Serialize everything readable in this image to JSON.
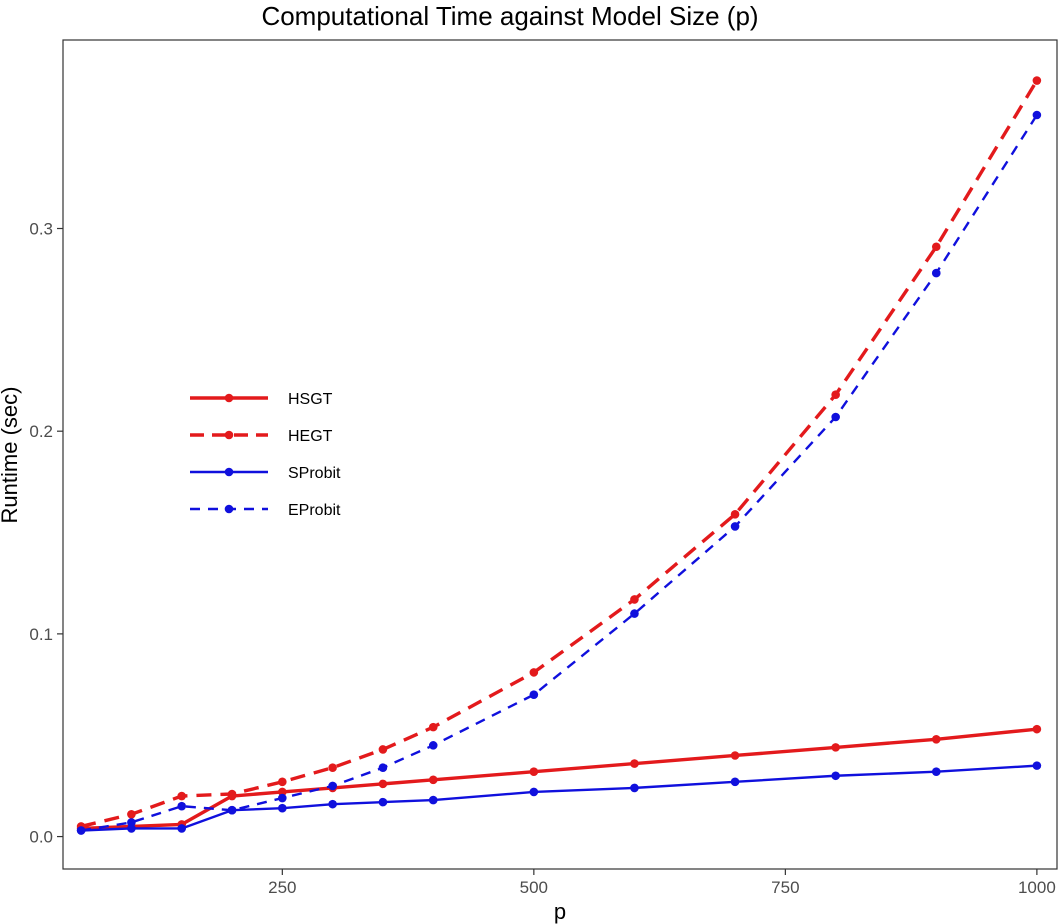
{
  "chart_data": {
    "type": "line",
    "title": "Computational Time against Model Size (p)",
    "xlabel": "p",
    "ylabel": "Runtime (sec)",
    "xlim": [
      32,
      1020
    ],
    "ylim": [
      -0.016,
      0.393
    ],
    "xticks": [
      250,
      500,
      750,
      1000
    ],
    "xtick_labels": [
      "250",
      "500",
      "750",
      "1000"
    ],
    "yticks": [
      0.0,
      0.1,
      0.2,
      0.3
    ],
    "ytick_labels": [
      "0.0",
      "0.1",
      "0.2",
      "0.3"
    ],
    "grid": false,
    "legend_position": "left-middle",
    "x": [
      50,
      100,
      150,
      200,
      250,
      300,
      350,
      400,
      500,
      600,
      700,
      800,
      900,
      1000
    ],
    "series": [
      {
        "name": "HSGT",
        "color": "#e31a1c",
        "dash": "solid",
        "width": "thick",
        "values": [
          0.004,
          0.005,
          0.006,
          0.02,
          0.022,
          0.024,
          0.026,
          0.028,
          0.032,
          0.036,
          0.04,
          0.044,
          0.048,
          0.053
        ]
      },
      {
        "name": "HEGT",
        "color": "#e31a1c",
        "dash": "dashed",
        "width": "thick",
        "values": [
          0.005,
          0.011,
          0.02,
          0.021,
          0.027,
          0.034,
          0.043,
          0.054,
          0.081,
          0.117,
          0.159,
          0.218,
          0.291,
          0.373
        ]
      },
      {
        "name": "SProbit",
        "color": "#1010dd",
        "dash": "solid",
        "width": "thin",
        "values": [
          0.003,
          0.004,
          0.004,
          0.013,
          0.014,
          0.016,
          0.017,
          0.018,
          0.022,
          0.024,
          0.027,
          0.03,
          0.032,
          0.035
        ]
      },
      {
        "name": "EProbit",
        "color": "#1010dd",
        "dash": "dashed",
        "width": "thin",
        "values": [
          0.003,
          0.007,
          0.015,
          0.013,
          0.019,
          0.025,
          0.034,
          0.045,
          0.07,
          0.11,
          0.153,
          0.207,
          0.278,
          0.356
        ]
      }
    ]
  }
}
